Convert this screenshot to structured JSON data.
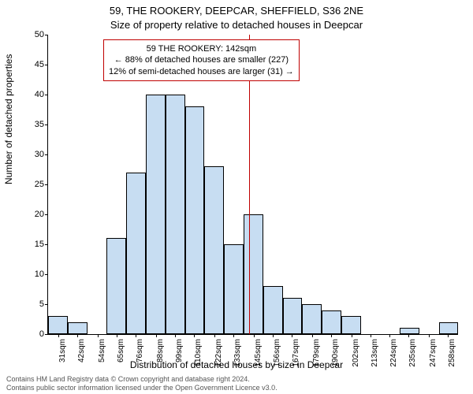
{
  "title_line1": "59, THE ROOKERY, DEEPCAR, SHEFFIELD, S36 2NE",
  "title_line2": "Size of property relative to detached houses in Deepcar",
  "y_axis_label": "Number of detached properties",
  "x_axis_label": "Distribution of detached houses by size in Deepcar",
  "annotation": {
    "line1": "59 THE ROOKERY: 142sqm",
    "line2": "← 88% of detached houses are smaller (227)",
    "line3": "12% of semi-detached houses are larger (31) →",
    "border_color": "#c00000",
    "background": "#ffffff",
    "fontsize": 11
  },
  "marker": {
    "x_value": 142,
    "color": "#c00000"
  },
  "chart": {
    "type": "histogram",
    "bar_color": "#c7ddf2",
    "bar_border": "#000000",
    "bar_border_width": 0.5,
    "background_color": "#ffffff",
    "x_min": 25,
    "x_max": 264,
    "y_min": 0,
    "y_max": 50,
    "y_ticks": [
      0,
      5,
      10,
      15,
      20,
      25,
      30,
      35,
      40,
      45,
      50
    ],
    "x_tick_labels": [
      "31sqm",
      "42sqm",
      "54sqm",
      "65sqm",
      "76sqm",
      "88sqm",
      "99sqm",
      "110sqm",
      "122sqm",
      "133sqm",
      "145sqm",
      "156sqm",
      "167sqm",
      "179sqm",
      "190sqm",
      "202sqm",
      "213sqm",
      "224sqm",
      "235sqm",
      "247sqm",
      "258sqm"
    ],
    "x_tick_positions": [
      31,
      42,
      54,
      65,
      76,
      88,
      99,
      110,
      122,
      133,
      145,
      156,
      167,
      179,
      190,
      202,
      213,
      224,
      235,
      247,
      258
    ],
    "bin_edges": [
      25,
      36.4,
      47.8,
      59.2,
      70.6,
      82,
      93.4,
      104.8,
      116.2,
      127.6,
      139,
      150.4,
      161.8,
      173.2,
      184.6,
      196,
      207.4,
      218.8,
      230.2,
      241.6,
      253,
      264
    ],
    "bin_counts": [
      3,
      2,
      0,
      16,
      27,
      40,
      40,
      38,
      28,
      15,
      20,
      8,
      6,
      5,
      4,
      3,
      0,
      0,
      1,
      0,
      2
    ]
  },
  "footer": {
    "line1": "Contains HM Land Registry data © Crown copyright and database right 2024.",
    "line2": "Contains public sector information licensed under the Open Government Licence v3.0.",
    "color": "#555555",
    "fontsize": 9
  },
  "fonts": {
    "title_fontsize": 13,
    "axis_label_fontsize": 12,
    "tick_fontsize": 11,
    "xtick_fontsize": 10
  }
}
